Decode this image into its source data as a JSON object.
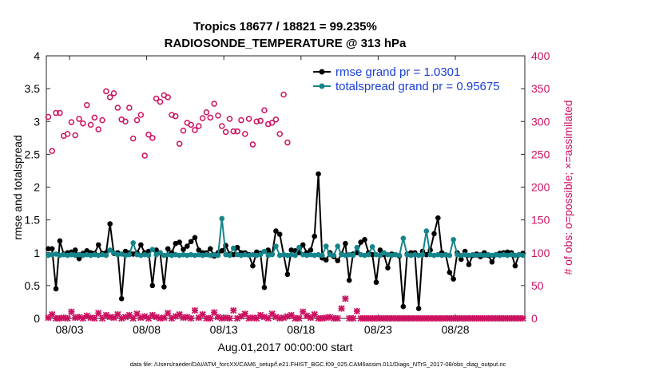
{
  "chart_data": {
    "type": "line",
    "title": "Tropics 18677 / 18821 = 99.235%",
    "subtitle": "RADIOSONDE_TEMPERATURE @ 313 hPa",
    "xlabel": "Aug.01,2017 00:00:00 start",
    "ylabel": "rmse and totalspread",
    "ylabel_right": "# of obs: o=possible; ×=assimilated",
    "footnote": "data file: /Users/raeder/DAI/ATM_forcXX/CAM6_setup/f.e21.FHIST_BGC.f09_025.CAM6assim.011/Diags_NTrS_2017-08/obs_diag_output.nc",
    "xlim": [
      1.5,
      32.5
    ],
    "ylim": [
      0,
      4
    ],
    "ylim_right": [
      0,
      400
    ],
    "xticks": [
      {
        "x": 3,
        "label": "08/03"
      },
      {
        "x": 8,
        "label": "08/08"
      },
      {
        "x": 13,
        "label": "08/13"
      },
      {
        "x": 18,
        "label": "08/18"
      },
      {
        "x": 23,
        "label": "08/23"
      },
      {
        "x": 28,
        "label": "08/28"
      }
    ],
    "yticks": [
      "0",
      "0.5",
      "1",
      "1.5",
      "2",
      "2.5",
      "3",
      "3.5",
      "4"
    ],
    "yticks_right": [
      "0",
      "50",
      "100",
      "150",
      "200",
      "250",
      "300",
      "350",
      "400"
    ],
    "x": [
      1.625,
      1.875,
      2.125,
      2.375,
      2.625,
      2.875,
      3.125,
      3.375,
      3.625,
      3.875,
      4.125,
      4.375,
      4.625,
      4.875,
      5.125,
      5.375,
      5.625,
      5.875,
      6.125,
      6.375,
      6.625,
      6.875,
      7.125,
      7.375,
      7.625,
      7.875,
      8.125,
      8.375,
      8.625,
      8.875,
      9.125,
      9.375,
      9.625,
      9.875,
      10.125,
      10.375,
      10.625,
      10.875,
      11.125,
      11.375,
      11.625,
      11.875,
      12.125,
      12.375,
      12.625,
      12.875,
      13.125,
      13.375,
      13.625,
      13.875,
      14.125,
      14.375,
      14.625,
      14.875,
      15.125,
      15.375,
      15.625,
      15.875,
      16.125,
      16.375,
      16.625,
      16.875,
      17.125,
      17.375,
      17.625,
      17.875,
      18.125,
      18.375,
      18.625,
      18.875,
      19.125,
      19.375,
      19.625,
      19.875,
      20.125,
      20.375,
      20.625,
      20.875,
      21.125,
      21.375,
      21.625,
      21.875,
      22.125,
      22.375,
      22.625,
      22.875,
      23.125,
      23.375,
      23.625,
      23.875,
      24.125,
      24.375,
      24.625,
      24.875,
      25.125,
      25.375,
      25.625,
      25.875,
      26.125,
      26.375,
      26.625,
      26.875,
      27.125,
      27.375,
      27.625,
      27.875,
      28.125,
      28.375,
      28.625,
      28.875,
      29.125,
      29.375,
      29.625,
      29.875,
      30.125,
      30.375,
      30.625,
      30.875,
      31.125,
      31.375,
      31.625,
      31.875,
      32.125,
      32.375
    ],
    "series": [
      {
        "name": "rmse grand pr = 1.0301",
        "color": "#000000",
        "axis": "left",
        "values": [
          1.06,
          1.06,
          0.45,
          1.18,
          0.98,
          1.0,
          1.01,
          1.04,
          0.91,
          0.99,
          1.03,
          1.0,
          0.99,
          1.12,
          0.99,
          1.0,
          1.44,
          0.99,
          1.0,
          0.3,
          1.02,
          1.0,
          0.98,
          1.0,
          1.12,
          1.0,
          1.02,
          0.5,
          1.04,
          1.0,
          0.48,
          1.06,
          1.0,
          1.14,
          1.16,
          1.05,
          1.1,
          1.17,
          1.23,
          1.04,
          1.0,
          1.0,
          1.06,
          0.95,
          1.0,
          1.03,
          1.11,
          0.98,
          0.97,
          1.08,
          1.0,
          1.0,
          0.97,
          0.8,
          1.01,
          0.99,
          0.47,
          1.04,
          0.98,
          1.33,
          1.28,
          0.97,
          0.67,
          1.04,
          1.03,
          1.0,
          1.12,
          1.0,
          1.04,
          1.25,
          2.2,
          0.92,
          0.89,
          1.0,
          0.94,
          0.88,
          0.98,
          1.14,
          0.58,
          0.98,
          1.0,
          1.16,
          1.2,
          1.0,
          0.97,
          0.55,
          1.04,
          0.97,
          0.77,
          0.98,
          0.97,
          0.95,
          0.18,
          0.98,
          1.0,
          1.0,
          0.15,
          1.02,
          0.97,
          1.04,
          1.29,
          1.53,
          1.0,
          0.97,
          0.7,
          0.6,
          1.0,
          0.9,
          1.02,
          0.82,
          0.96,
          0.98,
          0.94,
          1.0,
          0.96,
          0.86,
          0.97,
          0.99,
          1.0,
          1.01,
          1.0,
          0.8,
          0.97,
          0.99
        ]
      },
      {
        "name": "totalspread grand pr = 0.95675",
        "color": "#14858a",
        "axis": "left",
        "values": [
          0.96,
          0.97,
          0.98,
          0.96,
          0.97,
          0.96,
          0.97,
          0.96,
          0.97,
          0.96,
          0.97,
          0.96,
          0.97,
          0.96,
          0.97,
          0.96,
          1.04,
          1.0,
          0.97,
          0.98,
          0.96,
          0.97,
          1.15,
          0.97,
          0.96,
          0.97,
          0.96,
          1.05,
          0.97,
          1.0,
          0.96,
          0.97,
          0.96,
          0.97,
          0.96,
          0.97,
          0.96,
          0.97,
          0.96,
          0.97,
          0.96,
          0.97,
          0.96,
          0.97,
          0.96,
          1.52,
          0.97,
          0.96,
          1.07,
          0.97,
          0.96,
          0.97,
          0.96,
          0.97,
          0.96,
          0.97,
          1.02,
          0.96,
          0.97,
          1.1,
          0.96,
          0.97,
          0.96,
          0.97,
          0.96,
          1.08,
          0.97,
          0.96,
          0.97,
          0.96,
          0.97,
          0.96,
          1.1,
          0.97,
          0.96,
          1.1,
          0.97,
          0.96,
          0.97,
          0.96,
          1.08,
          0.97,
          0.96,
          0.97,
          1.09,
          0.97,
          0.96,
          1.0,
          0.97,
          0.96,
          0.97,
          0.96,
          1.22,
          0.97,
          0.96,
          0.97,
          0.96,
          0.97,
          1.33,
          0.97,
          0.96,
          0.97,
          0.96,
          0.97,
          0.96,
          1.2,
          0.97,
          0.96,
          0.97,
          0.96,
          0.97,
          0.96,
          0.97,
          0.96,
          0.97,
          0.96,
          0.97,
          0.96,
          0.97,
          0.96,
          0.97,
          0.96,
          0.97,
          0.96
        ]
      },
      {
        "name": "possible obs",
        "color": "#cc1160",
        "axis": "right",
        "marker": "o",
        "values": [
          307,
          255,
          313,
          313,
          278,
          281,
          299,
          279,
          304,
          297,
          325,
          295,
          306,
          288,
          302,
          346,
          337,
          343,
          321,
          303,
          300,
          321,
          274,
          302,
          310,
          248,
          280,
          275,
          335,
          330,
          340,
          337,
          310,
          308,
          266,
          286,
          298,
          295,
          287,
          293,
          305,
          314,
          306,
          327,
          309,
          293,
          284,
          304,
          285,
          285,
          302,
          281,
          304,
          265,
          300,
          301,
          317,
          296,
          298,
          303,
          281,
          341,
          268,
          0,
          0,
          0,
          0,
          0,
          0,
          0,
          0,
          0,
          0,
          0,
          0,
          0,
          0,
          0,
          0,
          0,
          0,
          0,
          0,
          0,
          0,
          0,
          0,
          0,
          0,
          0,
          0,
          0,
          0,
          0,
          0,
          0,
          0,
          0,
          0,
          0,
          0,
          0,
          0,
          0,
          0,
          0,
          0,
          0,
          0,
          0,
          0,
          0,
          0,
          0,
          0,
          0,
          0,
          0,
          0,
          0,
          0,
          0,
          0,
          0
        ]
      },
      {
        "name": "assimilated obs",
        "color": "#cc1160",
        "axis": "right",
        "marker": "x",
        "values": [
          1,
          6,
          0,
          0,
          1,
          0,
          10,
          1,
          2,
          0,
          4,
          1,
          0,
          8,
          0,
          5,
          2,
          1,
          6,
          0,
          2,
          5,
          0,
          7,
          1,
          3,
          0,
          5,
          2,
          0,
          1,
          8,
          0,
          3,
          6,
          1,
          2,
          0,
          12,
          1,
          6,
          0,
          0,
          9,
          2,
          0,
          1,
          0,
          12,
          0,
          3,
          7,
          0,
          1,
          0,
          5,
          2,
          0,
          7,
          2,
          0,
          1,
          3,
          5,
          0,
          0,
          10,
          4,
          1,
          6,
          0,
          0,
          1,
          2,
          0,
          0,
          15,
          30,
          0,
          0,
          11,
          0,
          0,
          0,
          0,
          0,
          0,
          0,
          0,
          0,
          0,
          0,
          0,
          0,
          0,
          0,
          0,
          0,
          0,
          0,
          0,
          0,
          0,
          0,
          0,
          0,
          0,
          0,
          0,
          0,
          0,
          0,
          0,
          0,
          0,
          0,
          0,
          0,
          0,
          0,
          0,
          0,
          0,
          0
        ]
      }
    ],
    "legend": {
      "position": "top-right"
    }
  }
}
